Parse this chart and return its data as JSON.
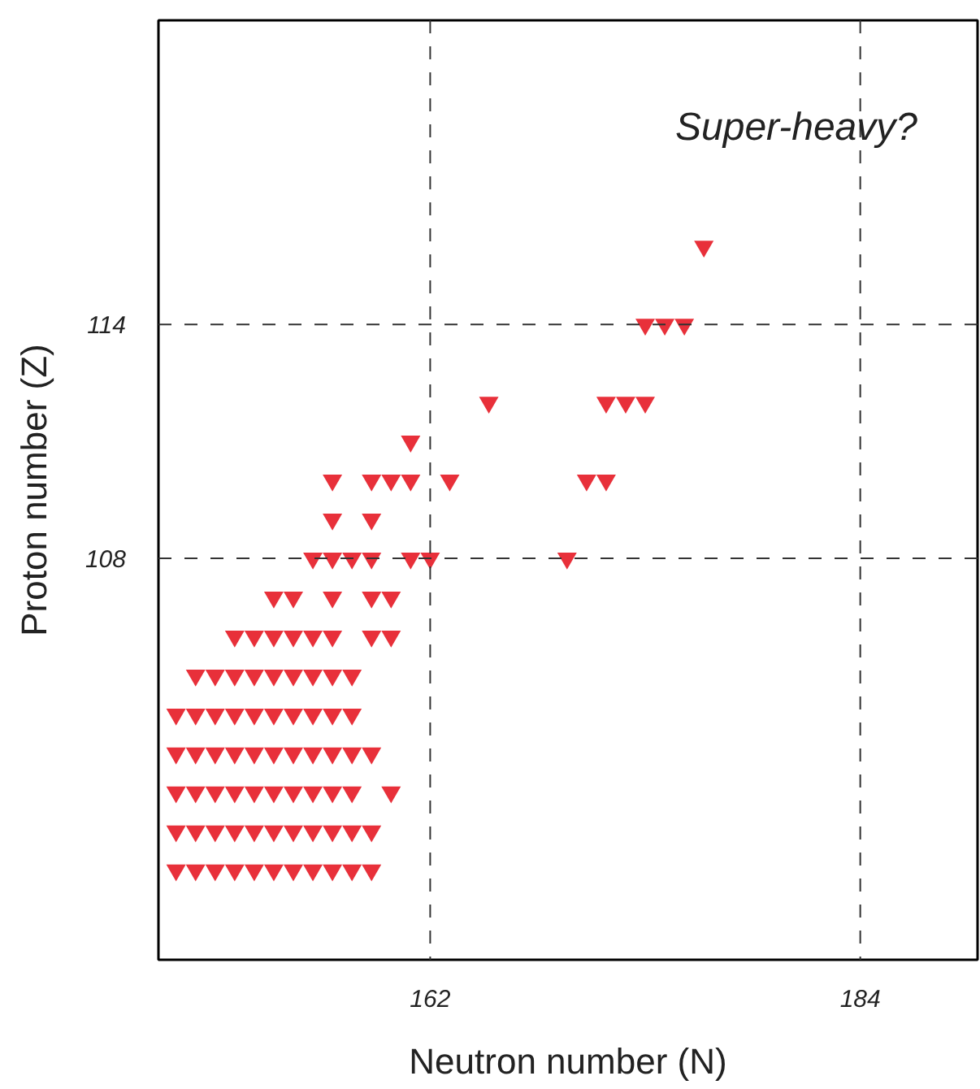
{
  "chart_data": {
    "type": "scatter",
    "xlabel": "Neutron number (N)",
    "ylabel": "Proton number (Z)",
    "xlim": [
      148.1,
      190
    ],
    "ylim": [
      97.7,
      121.8
    ],
    "xticks": [
      162,
      184
    ],
    "yticks": [
      108,
      114
    ],
    "grid": false,
    "marker": "triangle",
    "ref_lines": [
      {
        "axis": "x",
        "value": 162,
        "line_style": "dashed",
        "color": "#333333"
      },
      {
        "axis": "x",
        "value": 184,
        "line_style": "dashed",
        "color": "#333333"
      },
      {
        "axis": "y",
        "value": 108,
        "line_style": "dashed",
        "color": "#333333"
      },
      {
        "axis": "y",
        "value": 114,
        "line_style": "dashed",
        "color": "#333333"
      }
    ],
    "annotations": [
      "Super-heavy?"
    ],
    "series": [
      {
        "color": "#e8303a",
        "x": [
          149,
          150,
          151,
          152,
          153,
          154,
          155,
          156,
          157,
          158,
          159,
          149,
          150,
          151,
          152,
          153,
          154,
          155,
          156,
          157,
          158,
          159,
          149,
          150,
          151,
          152,
          153,
          154,
          155,
          156,
          157,
          158,
          160,
          149,
          150,
          151,
          152,
          153,
          154,
          155,
          156,
          157,
          158,
          159,
          149,
          150,
          151,
          152,
          153,
          154,
          155,
          156,
          157,
          158,
          150,
          151,
          152,
          153,
          154,
          155,
          156,
          157,
          158,
          152,
          153,
          154,
          155,
          156,
          157,
          159,
          160,
          154,
          155,
          157,
          159,
          160,
          156,
          157,
          158,
          159,
          161,
          162,
          169,
          157,
          159,
          157,
          159,
          160,
          161,
          163,
          170,
          171,
          161,
          165,
          171,
          172,
          173,
          173,
          174,
          175,
          176
        ],
        "values": [
          100,
          100,
          100,
          100,
          100,
          100,
          100,
          100,
          100,
          100,
          100,
          101,
          101,
          101,
          101,
          101,
          101,
          101,
          101,
          101,
          101,
          101,
          102,
          102,
          102,
          102,
          102,
          102,
          102,
          102,
          102,
          102,
          102,
          103,
          103,
          103,
          103,
          103,
          103,
          103,
          103,
          103,
          103,
          103,
          104,
          104,
          104,
          104,
          104,
          104,
          104,
          104,
          104,
          104,
          105,
          105,
          105,
          105,
          105,
          105,
          105,
          105,
          105,
          106,
          106,
          106,
          106,
          106,
          106,
          106,
          106,
          107,
          107,
          107,
          107,
          107,
          108,
          108,
          108,
          108,
          108,
          108,
          108,
          109,
          109,
          110,
          110,
          110,
          110,
          110,
          110,
          110,
          111,
          112,
          112,
          112,
          112,
          114,
          114,
          114,
          116
        ]
      }
    ]
  }
}
